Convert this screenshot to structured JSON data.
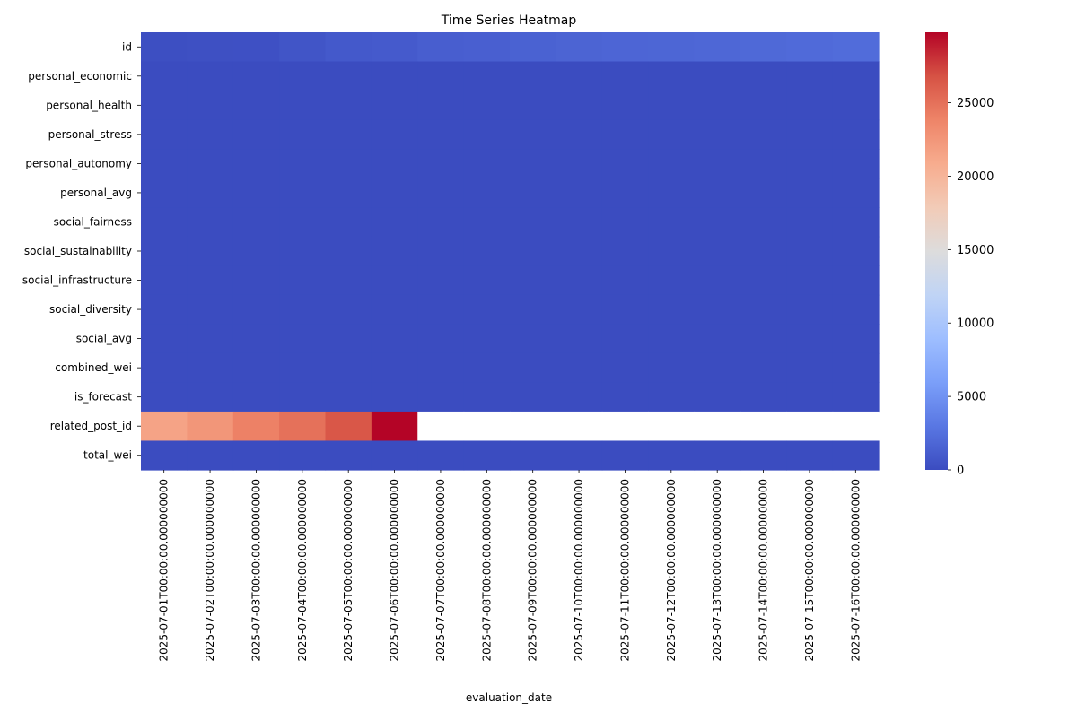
{
  "chart_data": {
    "type": "heatmap",
    "title": "Time Series Heatmap",
    "xlabel": "evaluation_date",
    "ylabel": "",
    "colormap": "coolwarm",
    "colormap_stops": [
      "#3b4cc0",
      "#5977e3",
      "#7b9ff9",
      "#9ebeff",
      "#c0d4f5",
      "#dddcdc",
      "#f2cbb7",
      "#f7ac8e",
      "#ee8468",
      "#d65244",
      "#b40426"
    ],
    "missing_color": "#ffffff",
    "colorbar": {
      "min": 0,
      "max": 29800,
      "ticks": [
        0,
        5000,
        10000,
        15000,
        20000,
        25000
      ],
      "tick_labels": [
        "0",
        "5000",
        "10000",
        "15000",
        "20000",
        "25000"
      ]
    },
    "x": [
      "2025-07-01T00:00:00.000000000",
      "2025-07-02T00:00:00.000000000",
      "2025-07-03T00:00:00.000000000",
      "2025-07-04T00:00:00.000000000",
      "2025-07-05T00:00:00.000000000",
      "2025-07-06T00:00:00.000000000",
      "2025-07-07T00:00:00.000000000",
      "2025-07-08T00:00:00.000000000",
      "2025-07-09T00:00:00.000000000",
      "2025-07-10T00:00:00.000000000",
      "2025-07-11T00:00:00.000000000",
      "2025-07-12T00:00:00.000000000",
      "2025-07-13T00:00:00.000000000",
      "2025-07-14T00:00:00.000000000",
      "2025-07-15T00:00:00.000000000",
      "2025-07-16T00:00:00.000000000"
    ],
    "y": [
      "id",
      "personal_economic",
      "personal_health",
      "personal_stress",
      "personal_autonomy",
      "personal_avg",
      "social_fairness",
      "social_sustainability",
      "social_infrastructure",
      "social_diversity",
      "social_avg",
      "combined_wei",
      "is_forecast",
      "related_post_id",
      "total_wei"
    ],
    "values": [
      [
        200,
        250,
        300,
        600,
        900,
        1000,
        1250,
        1350,
        1500,
        1650,
        1750,
        1800,
        1900,
        2000,
        2100,
        2200
      ],
      [
        0.6,
        0.6,
        0.6,
        0.6,
        0.6,
        0.6,
        0.6,
        0.6,
        0.6,
        0.6,
        0.6,
        0.6,
        0.6,
        0.6,
        0.6,
        0.6
      ],
      [
        0.6,
        0.6,
        0.6,
        0.6,
        0.6,
        0.6,
        0.6,
        0.6,
        0.6,
        0.6,
        0.6,
        0.6,
        0.6,
        0.6,
        0.6,
        0.6
      ],
      [
        0.5,
        0.5,
        0.5,
        0.5,
        0.5,
        0.5,
        0.5,
        0.5,
        0.5,
        0.5,
        0.5,
        0.5,
        0.5,
        0.5,
        0.5,
        0.5
      ],
      [
        0.6,
        0.6,
        0.6,
        0.6,
        0.6,
        0.6,
        0.6,
        0.6,
        0.6,
        0.6,
        0.6,
        0.6,
        0.6,
        0.6,
        0.6,
        0.6
      ],
      [
        0.6,
        0.6,
        0.6,
        0.6,
        0.6,
        0.6,
        0.6,
        0.6,
        0.6,
        0.6,
        0.6,
        0.6,
        0.6,
        0.6,
        0.6,
        0.6
      ],
      [
        0.6,
        0.6,
        0.6,
        0.6,
        0.6,
        0.6,
        0.6,
        0.6,
        0.6,
        0.6,
        0.6,
        0.6,
        0.6,
        0.6,
        0.6,
        0.6
      ],
      [
        0.6,
        0.6,
        0.6,
        0.6,
        0.6,
        0.6,
        0.6,
        0.6,
        0.6,
        0.6,
        0.6,
        0.6,
        0.6,
        0.6,
        0.6,
        0.6
      ],
      [
        0.6,
        0.6,
        0.6,
        0.6,
        0.6,
        0.6,
        0.6,
        0.6,
        0.6,
        0.6,
        0.6,
        0.6,
        0.6,
        0.6,
        0.6,
        0.6
      ],
      [
        0.6,
        0.6,
        0.6,
        0.6,
        0.6,
        0.6,
        0.6,
        0.6,
        0.6,
        0.6,
        0.6,
        0.6,
        0.6,
        0.6,
        0.6,
        0.6
      ],
      [
        0.6,
        0.6,
        0.6,
        0.6,
        0.6,
        0.6,
        0.6,
        0.6,
        0.6,
        0.6,
        0.6,
        0.6,
        0.6,
        0.6,
        0.6,
        0.6
      ],
      [
        0.6,
        0.6,
        0.6,
        0.6,
        0.6,
        0.6,
        0.6,
        0.6,
        0.6,
        0.6,
        0.6,
        0.6,
        0.6,
        0.6,
        0.6,
        0.6
      ],
      [
        0,
        0,
        0,
        0,
        0,
        0,
        0,
        0,
        0,
        0,
        0,
        0,
        0,
        0,
        0,
        0
      ],
      [
        21500,
        22500,
        24000,
        25000,
        26500,
        29800,
        null,
        null,
        null,
        null,
        null,
        null,
        null,
        null,
        null,
        null
      ],
      [
        1.2,
        1.2,
        1.2,
        1.2,
        1.2,
        1.2,
        1.2,
        1.2,
        1.2,
        1.2,
        1.2,
        1.2,
        1.2,
        1.2,
        1.2,
        1.2
      ]
    ]
  }
}
